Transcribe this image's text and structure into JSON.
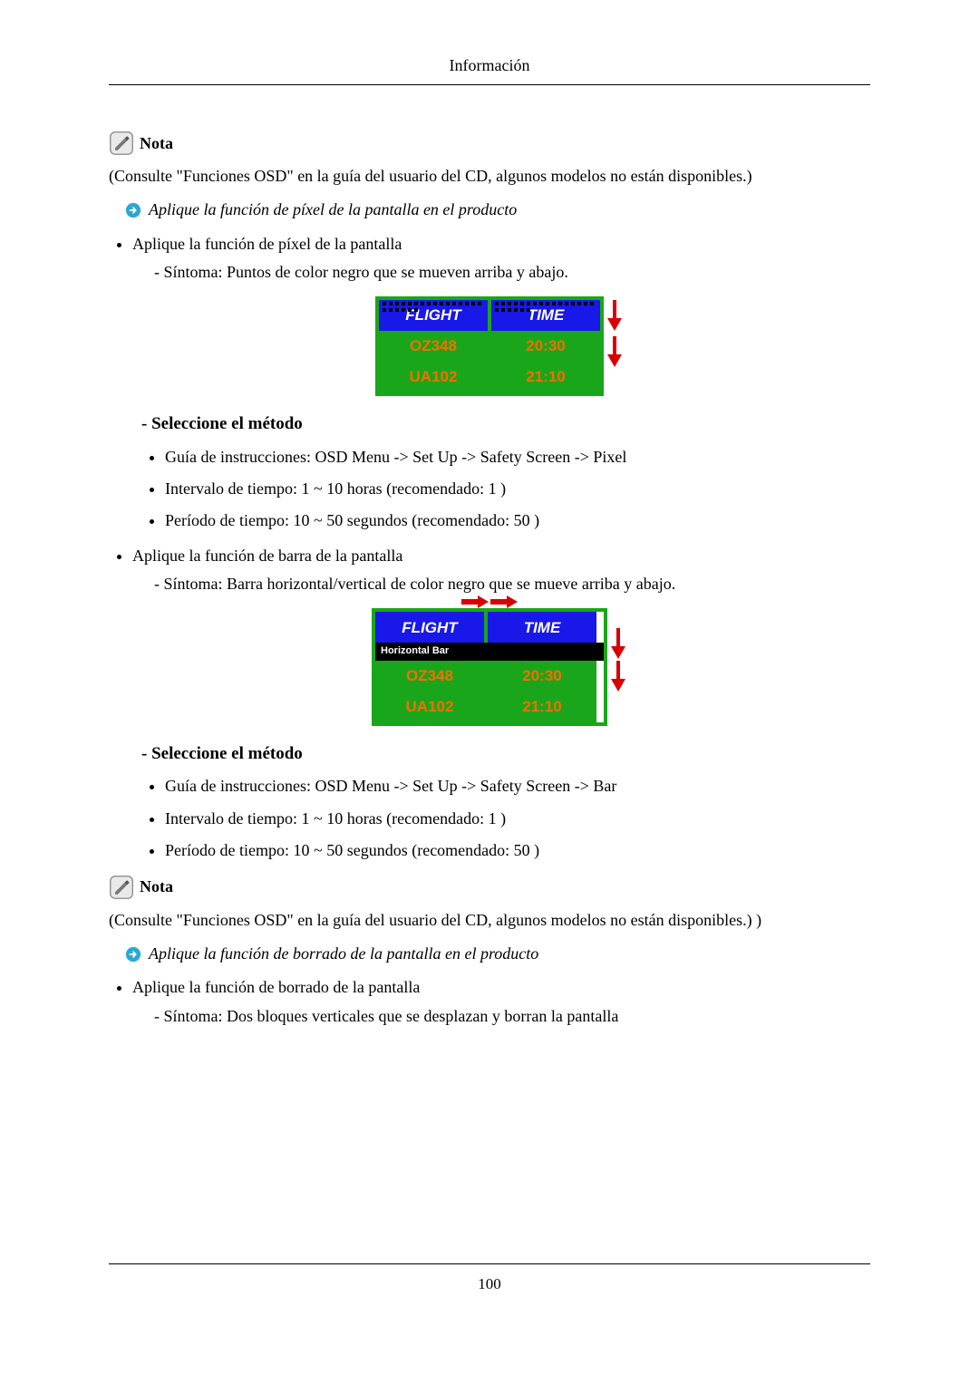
{
  "header": {
    "title": "Información"
  },
  "footer": {
    "page": "100"
  },
  "note1": {
    "label": "Nota",
    "text": "(Consulte \"Funciones OSD\" en la guía del usuario del CD, algunos modelos no están disponibles.)"
  },
  "section_pixel": {
    "arrow_title": "Aplique la función de píxel de la pantalla en el producto",
    "bullet1": "Aplique la función de píxel de la pantalla",
    "symptom": "- Síntoma: Puntos de color negro que se mueven arriba y abajo.",
    "method_heading": "- Seleccione el método",
    "m1": "Guía de instrucciones: OSD Menu -> Set Up -> Safety Screen -> Pixel",
    "m2": "Intervalo de tiempo: 1 ~ 10 horas (recomendado: 1 )",
    "m3": "Período de tiempo: 10 ~ 50 segundos (recomendado: 50 )"
  },
  "section_bar": {
    "bullet1": "Aplique la función de barra de la pantalla",
    "symptom": "- Síntoma: Barra horizontal/vertical de color negro que se mueve arriba y abajo.",
    "method_heading": "- Seleccione el método",
    "m1": "Guía de instrucciones: OSD Menu -> Set Up -> Safety Screen -> Bar",
    "m2": "Intervalo de tiempo: 1 ~ 10 horas (recomendado: 1 )",
    "m3": "Período de tiempo: 10 ~ 50 segundos (recomendado: 50 )"
  },
  "note2": {
    "label": "Nota",
    "text": "(Consulte \"Funciones OSD\" en la guía del usuario del CD, algunos modelos no están disponibles.) )"
  },
  "section_erase": {
    "arrow_title": "Aplique la función de borrado de la pantalla en el producto",
    "bullet1": "Aplique la función de borrado de la pantalla",
    "symptom": "- Síntoma: Dos bloques verticales que se desplazan y borran la pantalla"
  },
  "flight_table": {
    "border_color": "#1aa61a",
    "header_bg": "#1818e8",
    "header_fg": "#ffffff",
    "cell_bg": "#1aa61a",
    "cell_fg": "#ff6a00",
    "rows": [
      {
        "c1": "FLIGHT",
        "c2": "TIME",
        "header": true
      },
      {
        "c1": "OZ348",
        "c2": "20:30",
        "header": false
      },
      {
        "c1": "UA102",
        "c2": "21:10",
        "header": false
      }
    ],
    "hbar_label": "Horizontal Bar",
    "arrow_color": "#d80000"
  }
}
